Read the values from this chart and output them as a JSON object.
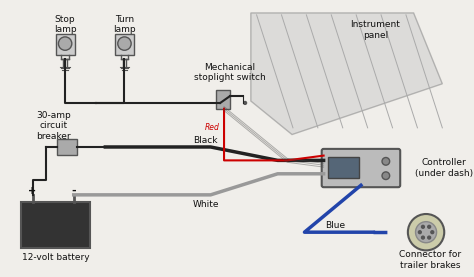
{
  "bg_color": "#f0eeea",
  "wire_color_black": "#222222",
  "wire_color_red": "#cc0000",
  "wire_color_blue": "#2244aa",
  "wire_color_white": "#888888",
  "component_color": "#555555",
  "text_color": "#111111",
  "labels": {
    "stop_lamp": "Stop\nlamp",
    "turn_lamp": "Turn\nlamp",
    "mech_switch": "Mechanical\nstoplight switch",
    "instrument_panel": "Instrument\npanel",
    "circuit_breaker": "30-amp\ncircuit\nbreaker",
    "controller": "Controller\n(under dash)",
    "battery": "12-volt battery",
    "connector": "Connector for\ntrailer brakes",
    "black_wire": "Black",
    "white_wire": "White",
    "blue_wire": "Blue",
    "red_wire": "Red"
  }
}
